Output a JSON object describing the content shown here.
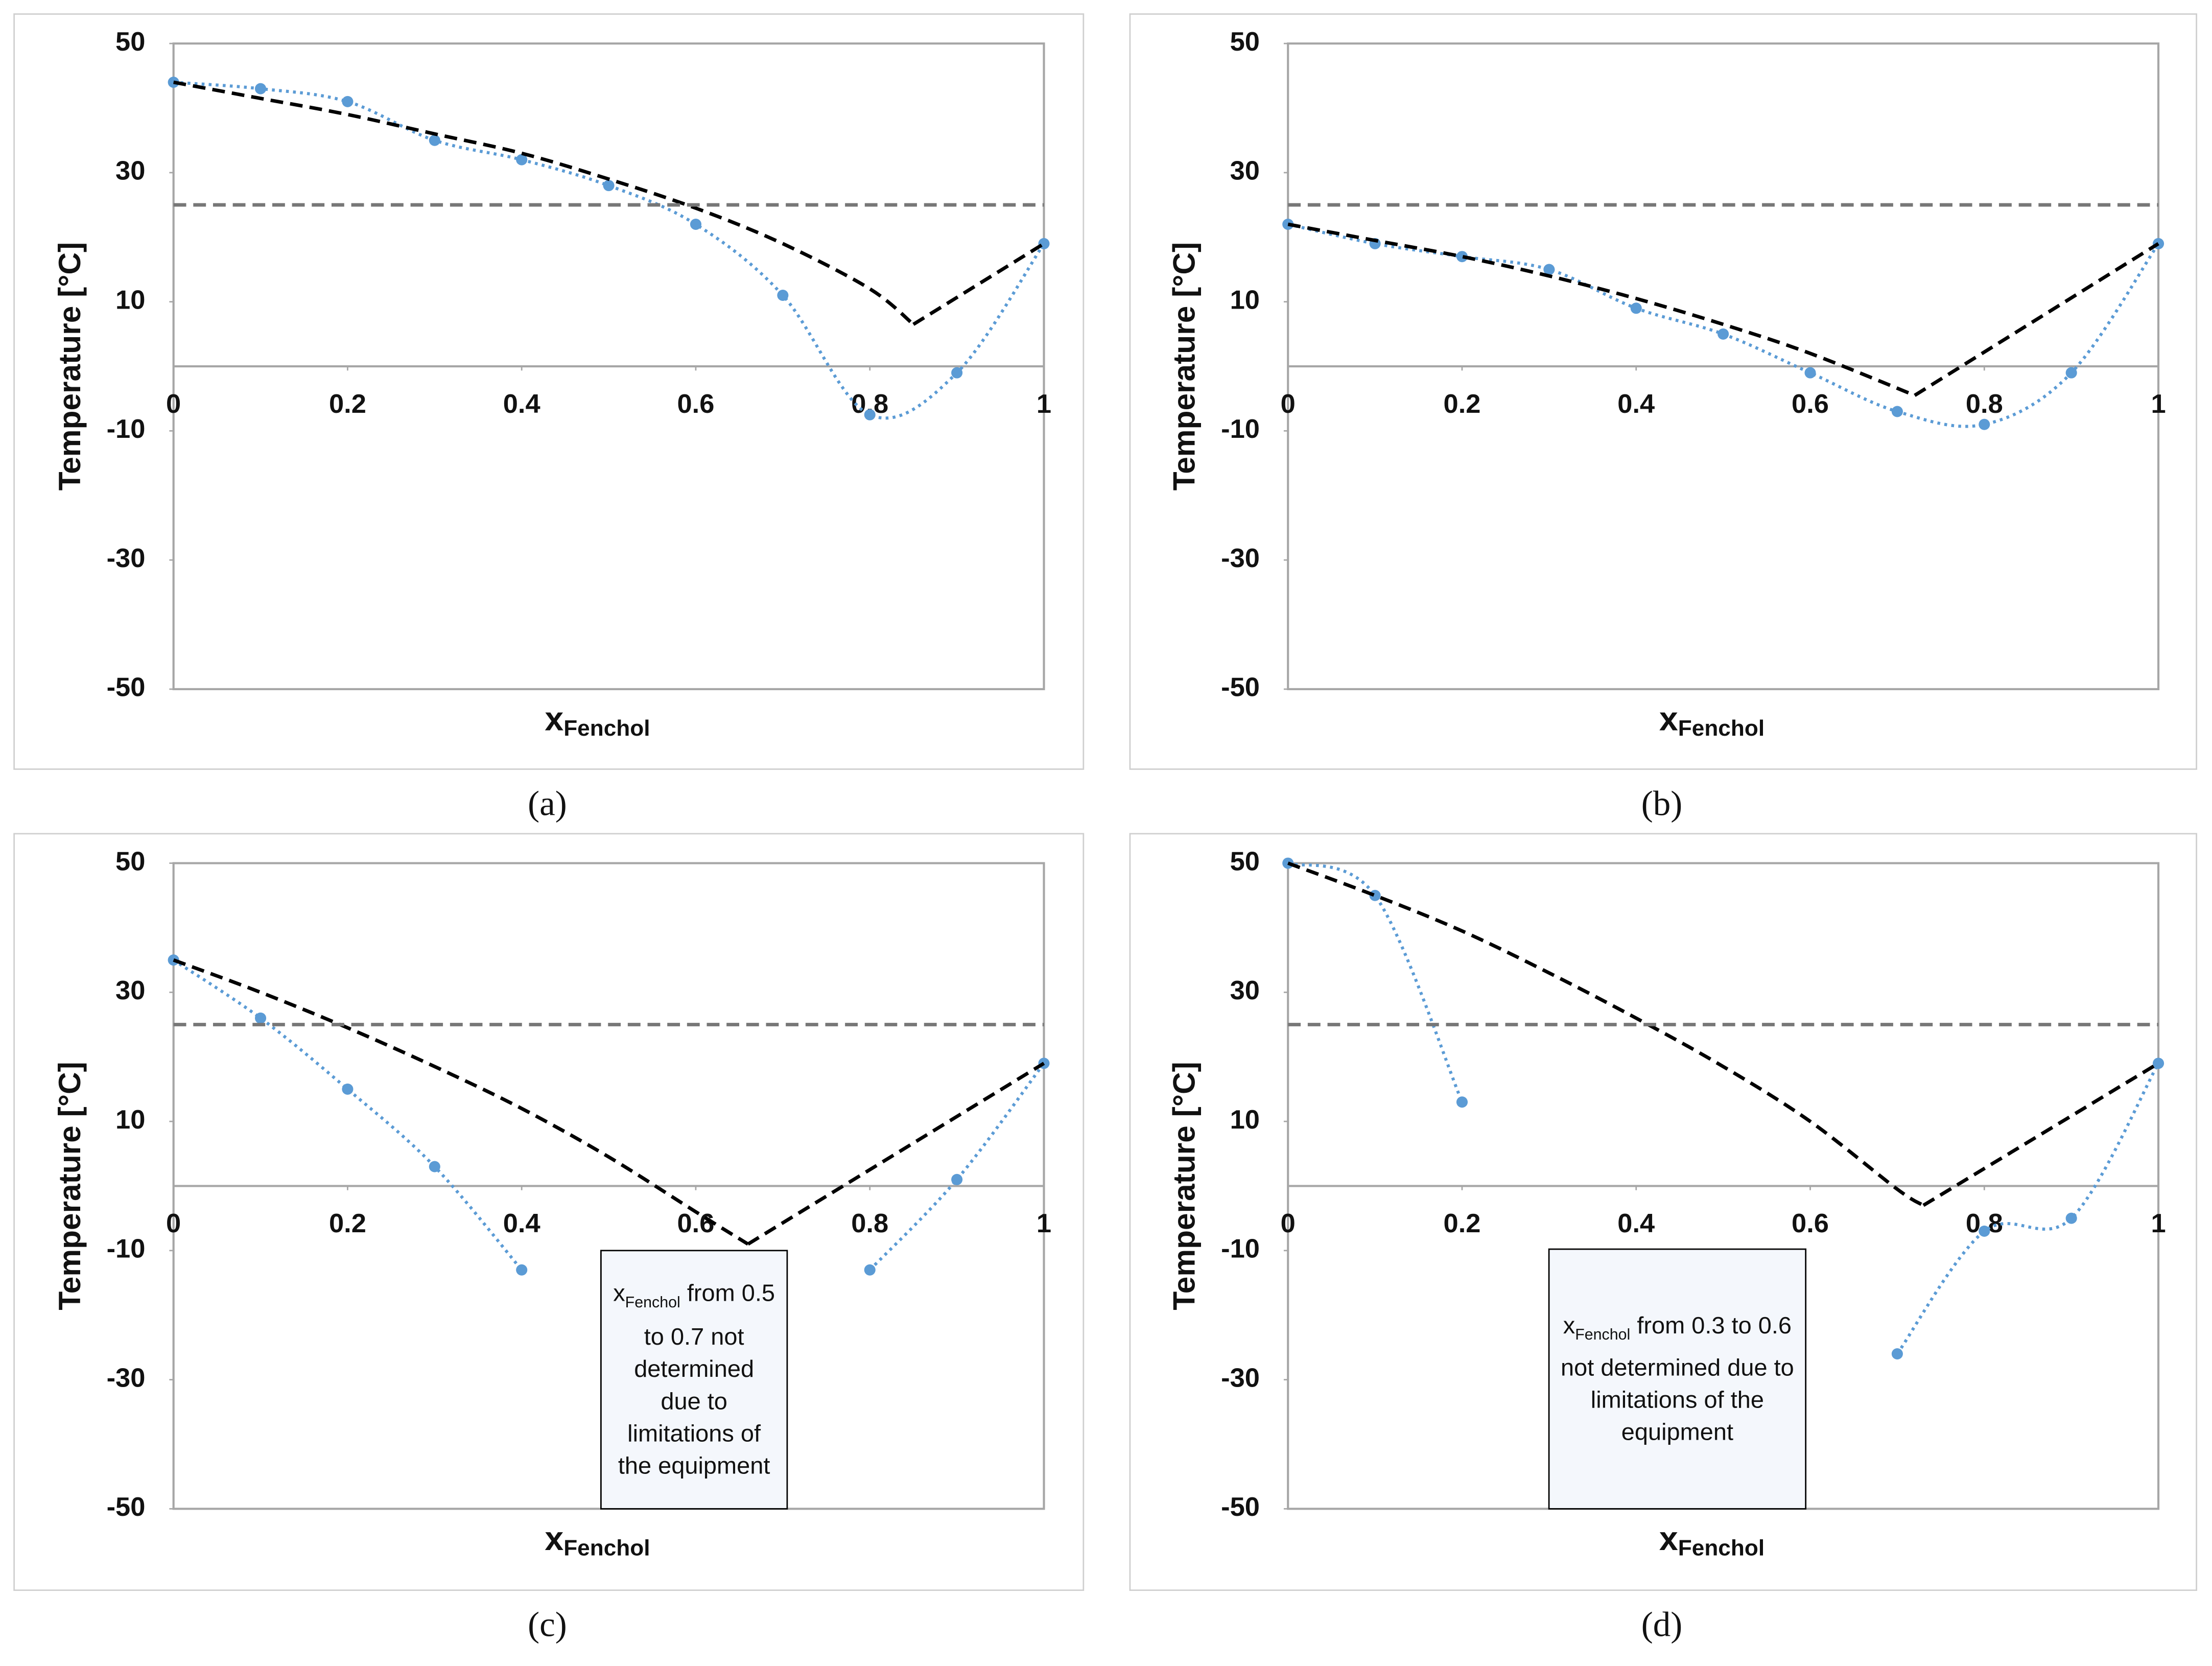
{
  "chart_data": [
    {
      "type": "line",
      "panel_label": "(a)",
      "y_label": "Temperature [°C]",
      "x_label": "x",
      "x_label_sub": "Fenchol",
      "xlim": [
        0,
        1
      ],
      "ylim": [
        -50,
        50
      ],
      "xticks": [
        0,
        0.2,
        0.4,
        0.6,
        0.8,
        1
      ],
      "yticks": [
        -50,
        -30,
        -10,
        10,
        30,
        50
      ],
      "zero_line": true,
      "series": [
        {
          "color": "#5b9bd5",
          "style": "dotted",
          "smooth": true,
          "markers": true,
          "x": [
            0,
            0.1,
            0.2,
            0.3,
            0.4,
            0.5,
            0.6,
            0.7,
            0.8,
            0.9,
            1
          ],
          "values": [
            44,
            43,
            41,
            35,
            32,
            28,
            22,
            11,
            -7.5,
            -1,
            19
          ]
        },
        {
          "color": "#000000",
          "style": "dashed",
          "smooth": true,
          "markers": false,
          "x": [
            0,
            0.1,
            0.2,
            0.3,
            0.4,
            0.5,
            0.6,
            0.7,
            0.8,
            0.85
          ],
          "values": [
            44,
            41.5,
            39,
            36,
            33,
            29,
            24.5,
            19,
            12,
            6.5
          ]
        },
        {
          "color": "#000000",
          "style": "dashed",
          "smooth": false,
          "markers": false,
          "x": [
            0.85,
            1
          ],
          "values": [
            6.5,
            19
          ]
        },
        {
          "color": "#777777",
          "style": "dashed",
          "smooth": false,
          "markers": false,
          "x": [
            0,
            1
          ],
          "values": [
            25,
            25
          ]
        }
      ]
    },
    {
      "type": "line",
      "panel_label": "(b)",
      "y_label": "Temperature [°C]",
      "x_label": "x",
      "x_label_sub": "Fenchol",
      "xlim": [
        0,
        1
      ],
      "ylim": [
        -50,
        50
      ],
      "xticks": [
        0,
        0.2,
        0.4,
        0.6,
        0.8,
        1
      ],
      "yticks": [
        -50,
        -30,
        -10,
        10,
        30,
        50
      ],
      "zero_line": true,
      "series": [
        {
          "color": "#5b9bd5",
          "style": "dotted",
          "smooth": true,
          "markers": true,
          "x": [
            0,
            0.1,
            0.2,
            0.3,
            0.4,
            0.5,
            0.6,
            0.7,
            0.8,
            0.9,
            1
          ],
          "values": [
            22,
            19,
            17,
            15,
            9,
            5,
            -1,
            -7,
            -9,
            -1,
            19
          ]
        },
        {
          "color": "#000000",
          "style": "dashed",
          "smooth": true,
          "markers": false,
          "x": [
            0,
            0.1,
            0.2,
            0.3,
            0.4,
            0.5,
            0.6,
            0.72
          ],
          "values": [
            22,
            19.5,
            17,
            14,
            10.5,
            6.5,
            2,
            -4.5
          ]
        },
        {
          "color": "#000000",
          "style": "dashed",
          "smooth": false,
          "markers": false,
          "x": [
            0.72,
            1
          ],
          "values": [
            -4.5,
            19
          ]
        },
        {
          "color": "#777777",
          "style": "dashed",
          "smooth": false,
          "markers": false,
          "x": [
            0,
            1
          ],
          "values": [
            25,
            25
          ]
        }
      ]
    },
    {
      "type": "line",
      "panel_label": "(c)",
      "y_label": "Temperature [°C]",
      "x_label": "x",
      "x_label_sub": "Fenchol",
      "xlim": [
        0,
        1
      ],
      "ylim": [
        -50,
        50
      ],
      "xticks": [
        0,
        0.2,
        0.4,
        0.6,
        0.8,
        1
      ],
      "yticks": [
        -50,
        -30,
        -10,
        10,
        30,
        50
      ],
      "zero_line": true,
      "annotation": {
        "var": "x",
        "sub": "Fenchol",
        "text": "from 0.5 to 0.7 not determined due to limitations of the equipment"
      },
      "series": [
        {
          "color": "#5b9bd5",
          "style": "dotted",
          "smooth": true,
          "markers": true,
          "x": [
            0,
            0.1,
            0.2,
            0.3,
            0.4,
            0.5,
            0.6,
            0.7,
            0.8,
            0.9,
            1
          ],
          "values": [
            35,
            26,
            15,
            3,
            -13,
            null,
            null,
            null,
            -13,
            1,
            19
          ]
        },
        {
          "color": "#000000",
          "style": "dashed",
          "smooth": true,
          "markers": false,
          "x": [
            0,
            0.1,
            0.2,
            0.3,
            0.4,
            0.5,
            0.6,
            0.66
          ],
          "values": [
            35,
            30,
            24.5,
            18.5,
            12,
            4.5,
            -4,
            -9
          ]
        },
        {
          "color": "#000000",
          "style": "dashed",
          "smooth": false,
          "markers": false,
          "x": [
            0.66,
            1
          ],
          "values": [
            -9,
            19
          ]
        },
        {
          "color": "#777777",
          "style": "dashed",
          "smooth": false,
          "markers": false,
          "x": [
            0,
            1
          ],
          "values": [
            25,
            25
          ]
        }
      ]
    },
    {
      "type": "line",
      "panel_label": "(d)",
      "y_label": "Temperature [°C]",
      "x_label": "x",
      "x_label_sub": "Fenchol",
      "xlim": [
        0,
        1
      ],
      "ylim": [
        -50,
        50
      ],
      "xticks": [
        0,
        0.2,
        0.4,
        0.6,
        0.8,
        1
      ],
      "yticks": [
        -50,
        -30,
        -10,
        10,
        30,
        50
      ],
      "zero_line": true,
      "annotation": {
        "var": "x",
        "sub": "Fenchol",
        "text": "from 0.3 to 0.6 not determined due to limitations of the equipment"
      },
      "series": [
        {
          "color": "#5b9bd5",
          "style": "dotted",
          "smooth": true,
          "markers": true,
          "x": [
            0,
            0.1,
            0.2,
            0.3,
            0.4,
            0.5,
            0.6,
            0.7,
            0.8,
            0.9,
            1
          ],
          "values": [
            50,
            45,
            13,
            null,
            null,
            null,
            null,
            -26,
            -7,
            -5,
            19
          ]
        },
        {
          "color": "#000000",
          "style": "dashed",
          "smooth": true,
          "markers": false,
          "x": [
            0,
            0.1,
            0.2,
            0.3,
            0.4,
            0.5,
            0.6,
            0.7,
            0.73
          ],
          "values": [
            50,
            45,
            39.5,
            33,
            26,
            18.5,
            10,
            -0.5,
            -3
          ]
        },
        {
          "color": "#000000",
          "style": "dashed",
          "smooth": false,
          "markers": false,
          "x": [
            0.73,
            1
          ],
          "values": [
            -3,
            19
          ]
        },
        {
          "color": "#777777",
          "style": "dashed",
          "smooth": false,
          "markers": false,
          "x": [
            0,
            1
          ],
          "values": [
            25,
            25
          ]
        }
      ]
    }
  ]
}
